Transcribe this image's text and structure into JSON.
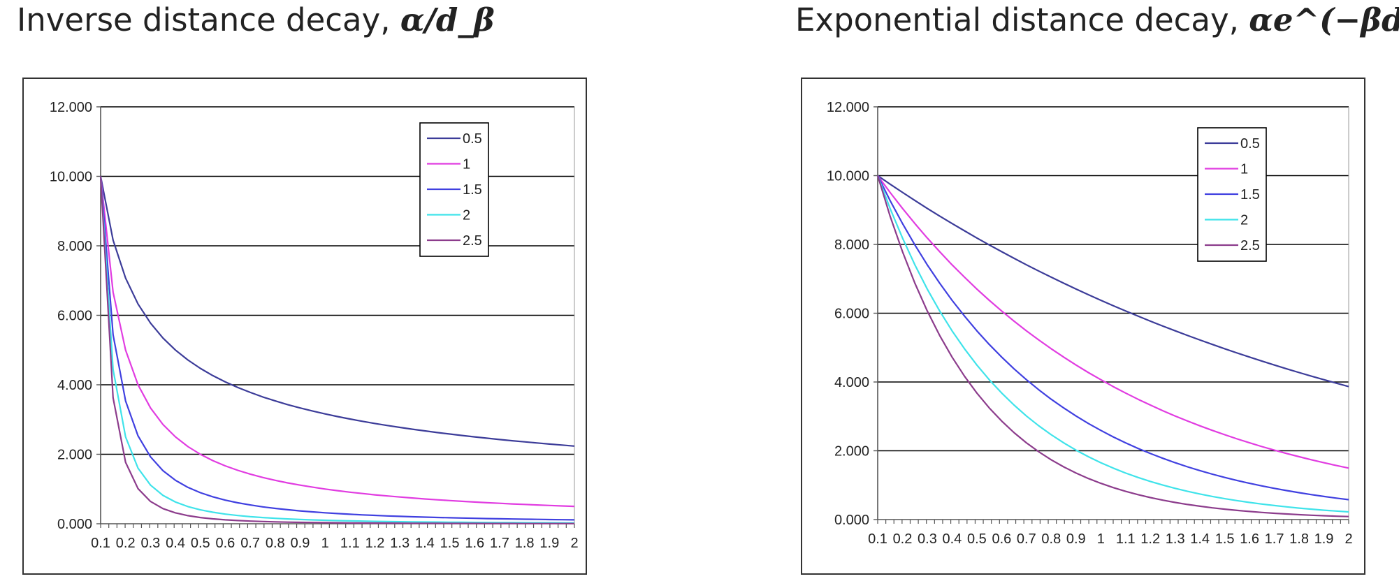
{
  "titles": {
    "left_text": "Inverse distance decay, ",
    "left_formula": "α/d_β",
    "right_text": "Exponential distance decay, ",
    "right_formula": "αe^(−βd)"
  },
  "colors": {
    "0.5": "#3c3c99",
    "1": "#e13ce1",
    "1.5": "#4040e0",
    "2": "#3fe3ea",
    "2.5": "#8c3c8c",
    "gridline": "#000000",
    "axis": "#555555"
  },
  "chart_data": [
    {
      "type": "line",
      "x": [
        0.1,
        0.15,
        0.2,
        0.25,
        0.3,
        0.35,
        0.4,
        0.45,
        0.5,
        0.55,
        0.6,
        0.65,
        0.7,
        0.75,
        0.8,
        0.85,
        0.9,
        0.95,
        1,
        1.05,
        1.1,
        1.15,
        1.2,
        1.25,
        1.3,
        1.35,
        1.4,
        1.45,
        1.5,
        1.55,
        1.6,
        1.65,
        1.7,
        1.75,
        1.8,
        1.85,
        1.9,
        1.95,
        2
      ],
      "x_tick_labels": [
        "0.1",
        "0.2",
        "0.3",
        "0.4",
        "0.5",
        "0.6",
        "0.7",
        "0.8",
        "0.9",
        "1",
        "1.1",
        "1.2",
        "1.3",
        "1.4",
        "1.5",
        "1.6",
        "1.7",
        "1.8",
        "1.9",
        "2"
      ],
      "y_tick_labels": [
        "0.000",
        "2.000",
        "4.000",
        "6.000",
        "8.000",
        "10.000",
        "12.000"
      ],
      "ylim": [
        0,
        12
      ],
      "grid": true,
      "legend_position": "top-right",
      "legend": [
        "0.5",
        "1",
        "1.5",
        "2",
        "2.5"
      ],
      "series": [
        {
          "name": "0.5",
          "values": [
            10.0,
            8.165,
            7.071,
            6.325,
            5.774,
            5.345,
            5.0,
            4.714,
            4.472,
            4.264,
            4.082,
            3.922,
            3.78,
            3.651,
            3.536,
            3.43,
            3.333,
            3.244,
            3.162,
            3.086,
            3.015,
            2.949,
            2.887,
            2.828,
            2.774,
            2.722,
            2.673,
            2.626,
            2.582,
            2.54,
            2.5,
            2.462,
            2.425,
            2.39,
            2.357,
            2.325,
            2.294,
            2.265,
            2.236
          ]
        },
        {
          "name": "1",
          "values": [
            10.0,
            6.667,
            5.0,
            4.0,
            3.333,
            2.857,
            2.5,
            2.222,
            2.0,
            1.818,
            1.667,
            1.538,
            1.429,
            1.333,
            1.25,
            1.176,
            1.111,
            1.053,
            1.0,
            0.952,
            0.909,
            0.87,
            0.833,
            0.8,
            0.769,
            0.741,
            0.714,
            0.69,
            0.667,
            0.645,
            0.625,
            0.606,
            0.588,
            0.571,
            0.556,
            0.541,
            0.526,
            0.513,
            0.5
          ]
        },
        {
          "name": "1.5",
          "values": [
            10.0,
            5.443,
            3.536,
            2.53,
            1.925,
            1.527,
            1.25,
            1.048,
            0.894,
            0.775,
            0.68,
            0.603,
            0.54,
            0.487,
            0.442,
            0.404,
            0.37,
            0.341,
            0.316,
            0.294,
            0.274,
            0.256,
            0.241,
            0.226,
            0.213,
            0.202,
            0.191,
            0.181,
            0.172,
            0.164,
            0.156,
            0.149,
            0.143,
            0.137,
            0.131,
            0.126,
            0.121,
            0.116,
            0.112
          ]
        },
        {
          "name": "2",
          "values": [
            10.0,
            4.444,
            2.5,
            1.6,
            1.111,
            0.816,
            0.625,
            0.494,
            0.4,
            0.331,
            0.278,
            0.237,
            0.204,
            0.178,
            0.156,
            0.138,
            0.123,
            0.111,
            0.1,
            0.091,
            0.083,
            0.076,
            0.069,
            0.064,
            0.059,
            0.055,
            0.051,
            0.048,
            0.044,
            0.042,
            0.039,
            0.037,
            0.035,
            0.033,
            0.031,
            0.029,
            0.028,
            0.026,
            0.025
          ]
        },
        {
          "name": "2.5",
          "values": [
            10.0,
            3.629,
            1.768,
            1.012,
            0.642,
            0.436,
            0.313,
            0.233,
            0.179,
            0.141,
            0.113,
            0.093,
            0.077,
            0.065,
            0.055,
            0.047,
            0.041,
            0.036,
            0.032,
            0.028,
            0.025,
            0.022,
            0.02,
            0.018,
            0.016,
            0.015,
            0.014,
            0.012,
            0.011,
            0.011,
            0.01,
            0.009,
            0.008,
            0.008,
            0.007,
            0.007,
            0.006,
            0.006,
            0.006
          ]
        }
      ]
    },
    {
      "type": "line",
      "x": [
        0.1,
        0.15,
        0.2,
        0.25,
        0.3,
        0.35,
        0.4,
        0.45,
        0.5,
        0.55,
        0.6,
        0.65,
        0.7,
        0.75,
        0.8,
        0.85,
        0.9,
        0.95,
        1,
        1.05,
        1.1,
        1.15,
        1.2,
        1.25,
        1.3,
        1.35,
        1.4,
        1.45,
        1.5,
        1.55,
        1.6,
        1.65,
        1.7,
        1.75,
        1.8,
        1.85,
        1.9,
        1.95,
        2
      ],
      "x_tick_labels": [
        "0.1",
        "0.2",
        "0.3",
        "0.4",
        "0.5",
        "0.6",
        "0.7",
        "0.8",
        "0.9",
        "1",
        "1.1",
        "1.2",
        "1.3",
        "1.4",
        "1.5",
        "1.6",
        "1.7",
        "1.8",
        "1.9",
        "2"
      ],
      "y_tick_labels": [
        "0.000",
        "2.000",
        "4.000",
        "6.000",
        "8.000",
        "10.000",
        "12.000"
      ],
      "ylim": [
        0,
        12
      ],
      "grid": true,
      "legend_position": "top-right",
      "legend": [
        "0.5",
        "1",
        "1.5",
        "2",
        "2.5"
      ],
      "series": [
        {
          "name": "0.5",
          "values": [
            10.0,
            9.753,
            9.512,
            9.277,
            9.048,
            8.825,
            8.607,
            8.395,
            8.187,
            7.985,
            7.788,
            7.596,
            7.408,
            7.225,
            7.047,
            6.873,
            6.703,
            6.538,
            6.376,
            6.219,
            6.065,
            5.916,
            5.769,
            5.627,
            5.488,
            5.353,
            5.22,
            5.092,
            4.966,
            4.843,
            4.724,
            4.607,
            4.493,
            4.382,
            4.274,
            4.169,
            4.066,
            3.965,
            3.867
          ]
        },
        {
          "name": "1",
          "values": [
            10.0,
            9.512,
            9.048,
            8.607,
            8.187,
            7.788,
            7.408,
            7.047,
            6.703,
            6.376,
            6.065,
            5.769,
            5.488,
            5.22,
            4.966,
            4.724,
            4.493,
            4.274,
            4.066,
            3.867,
            3.679,
            3.499,
            3.329,
            3.166,
            3.012,
            2.865,
            2.725,
            2.592,
            2.466,
            2.346,
            2.231,
            2.122,
            2.019,
            1.92,
            1.827,
            1.738,
            1.653,
            1.572,
            1.496
          ]
        },
        {
          "name": "1.5",
          "values": [
            10.0,
            9.277,
            8.607,
            7.985,
            7.408,
            6.873,
            6.376,
            5.916,
            5.488,
            5.092,
            4.724,
            4.382,
            4.066,
            3.772,
            3.499,
            3.247,
            3.012,
            2.794,
            2.592,
            2.405,
            2.231,
            2.07,
            1.92,
            1.782,
            1.653,
            1.534,
            1.423,
            1.32,
            1.225,
            1.136,
            1.054,
            0.978,
            0.907,
            0.842,
            0.781,
            0.724,
            0.672,
            0.623,
            0.578
          ]
        },
        {
          "name": "2",
          "values": [
            10.0,
            9.048,
            8.187,
            7.408,
            6.703,
            6.065,
            5.488,
            4.966,
            4.493,
            4.066,
            3.679,
            3.329,
            3.012,
            2.725,
            2.466,
            2.231,
            2.019,
            1.827,
            1.653,
            1.496,
            1.353,
            1.225,
            1.108,
            1.003,
            0.907,
            0.821,
            0.743,
            0.672,
            0.608,
            0.55,
            0.498,
            0.45,
            0.408,
            0.369,
            0.334,
            0.302,
            0.273,
            0.247,
            0.224
          ]
        },
        {
          "name": "2.5",
          "values": [
            10.0,
            8.825,
            7.788,
            6.873,
            6.065,
            5.353,
            4.724,
            4.169,
            3.679,
            3.247,
            2.865,
            2.528,
            2.231,
            1.969,
            1.738,
            1.534,
            1.353,
            1.194,
            1.054,
            0.93,
            0.821,
            0.724,
            0.639,
            0.564,
            0.498,
            0.439,
            0.388,
            0.342,
            0.302,
            0.267,
            0.235,
            0.208,
            0.183,
            0.162,
            0.143,
            0.126,
            0.111,
            0.098,
            0.087
          ]
        }
      ]
    }
  ]
}
